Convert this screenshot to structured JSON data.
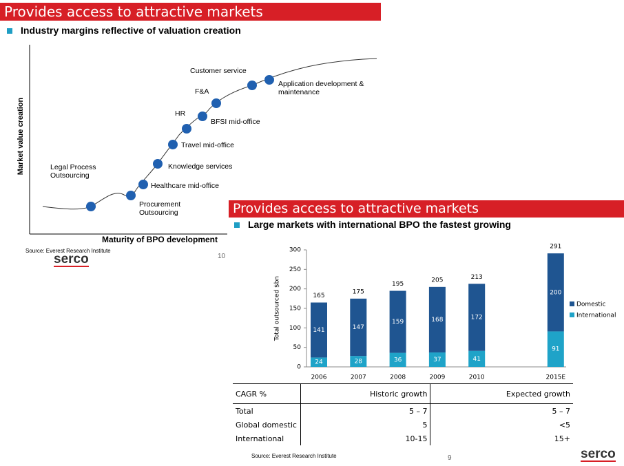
{
  "slide1": {
    "title": "Provides access to attractive markets",
    "bullet": "Industry margins reflective of valuation creation",
    "y_axis_label": "Market value creation",
    "x_axis_label": "Maturity of BPO development",
    "labels": [
      "Customer service",
      "F&A",
      "HR",
      "BFSI mid-office",
      "Travel mid-office",
      "Knowledge services",
      "Legal Process Outsourcing",
      "Healthcare mid-office",
      "Procurement Outsourcing",
      "Application development & maintenance"
    ],
    "source": "Source: Everest Research Institute",
    "logo": "serco",
    "page": "10"
  },
  "slide2": {
    "title": "Provides access to attractive markets",
    "bullet": "Large markets with international BPO the fastest growing",
    "table": {
      "header": [
        "CAGR %",
        "Historic growth",
        "Expected growth"
      ],
      "rows": [
        [
          "Total",
          "5 – 7",
          "5 – 7"
        ],
        [
          "Global domestic",
          "5",
          "<5"
        ],
        [
          "International",
          "10-15",
          "15+"
        ]
      ]
    },
    "source": "Source: Everest Research Institute",
    "logo": "serco",
    "page": "9"
  },
  "chart_data": {
    "type": "stacked_bar",
    "y_axis_label": "Total outsourced $bn",
    "categories": [
      "2006",
      "2007",
      "2008",
      "2009",
      "2010",
      null,
      "2015E"
    ],
    "series": [
      {
        "name": "International",
        "color": "#1fa3c8",
        "values": [
          24,
          28,
          36,
          37,
          41,
          null,
          91
        ]
      },
      {
        "name": "Domestic",
        "color": "#1f5591",
        "values": [
          141,
          147,
          159,
          168,
          172,
          null,
          200
        ]
      }
    ],
    "totals": [
      165,
      175,
      195,
      205,
      213,
      null,
      291
    ],
    "ylim": [
      0,
      300
    ],
    "yticks": [
      0,
      50,
      100,
      150,
      200,
      250,
      300
    ]
  }
}
